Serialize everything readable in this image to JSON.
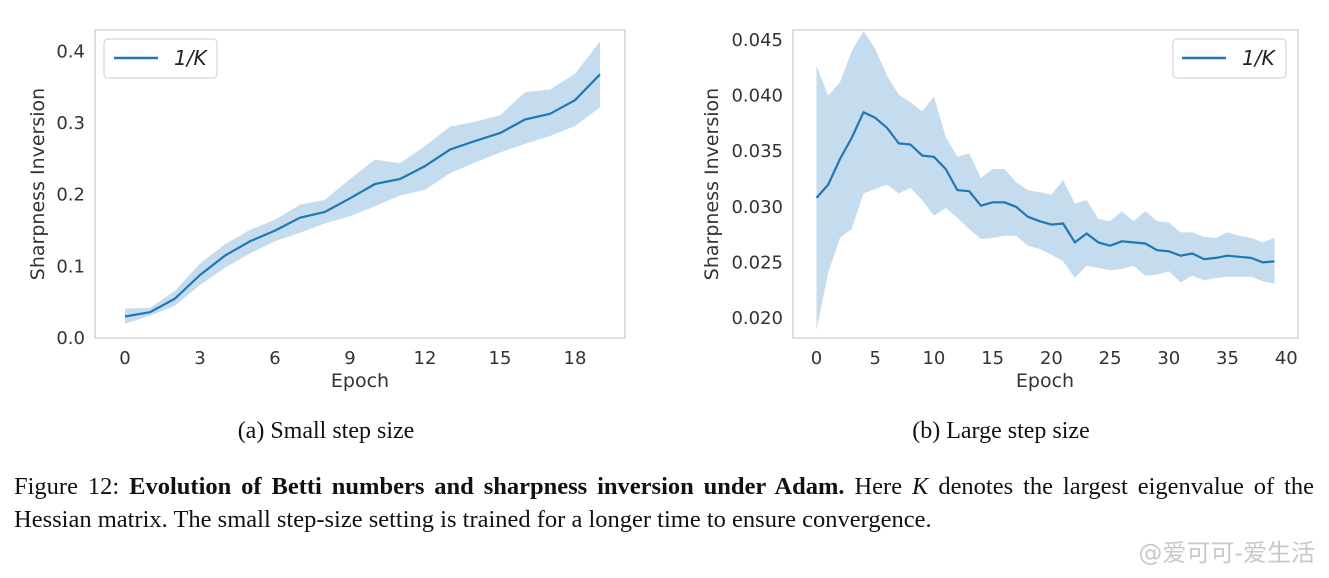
{
  "chart_data": [
    {
      "type": "line",
      "legend": "1/K",
      "legend_position": "top-left",
      "xlabel": "Epoch",
      "ylabel": "Sharpness Inversion",
      "xlim": [
        -1.2,
        20.0
      ],
      "ylim": [
        0.0,
        0.43
      ],
      "xticks": [
        0,
        3,
        6,
        9,
        12,
        15,
        18
      ],
      "yticks": [
        0.0,
        0.1,
        0.2,
        0.3,
        0.4
      ],
      "ytick_labels": [
        "0.0",
        "0.1",
        "0.2",
        "0.3",
        "0.4"
      ],
      "grid": false,
      "color": "#1f77b4",
      "subtitle": "(a) Small step size",
      "x": [
        0,
        1,
        2,
        3,
        4,
        5,
        6,
        7,
        8,
        9,
        10,
        11,
        12,
        13,
        14,
        15,
        16,
        17,
        18,
        19
      ],
      "mean": [
        0.03,
        0.036,
        0.055,
        0.088,
        0.115,
        0.135,
        0.15,
        0.168,
        0.176,
        0.195,
        0.215,
        0.222,
        0.24,
        0.263,
        0.275,
        0.286,
        0.305,
        0.313,
        0.332,
        0.368
      ],
      "upper": [
        0.041,
        0.042,
        0.066,
        0.104,
        0.131,
        0.151,
        0.165,
        0.186,
        0.193,
        0.222,
        0.249,
        0.244,
        0.268,
        0.295,
        0.302,
        0.311,
        0.343,
        0.347,
        0.369,
        0.414
      ],
      "lower": [
        0.02,
        0.031,
        0.045,
        0.074,
        0.098,
        0.118,
        0.135,
        0.147,
        0.16,
        0.17,
        0.184,
        0.199,
        0.207,
        0.23,
        0.245,
        0.259,
        0.271,
        0.282,
        0.296,
        0.322
      ]
    },
    {
      "type": "line",
      "legend": "1/K",
      "legend_position": "top-right",
      "xlabel": "Epoch",
      "ylabel": "Sharpness Inversion",
      "xlim": [
        -2.0,
        41.0
      ],
      "ylim": [
        0.0182,
        0.0459
      ],
      "xticks": [
        0,
        5,
        10,
        15,
        20,
        25,
        30,
        35,
        40
      ],
      "yticks": [
        0.02,
        0.025,
        0.03,
        0.035,
        0.04,
        0.045
      ],
      "ytick_labels": [
        "0.020",
        "0.025",
        "0.030",
        "0.035",
        "0.040",
        "0.045"
      ],
      "grid": false,
      "color": "#1f77b4",
      "subtitle": "(b) Large step size",
      "x": [
        0,
        1,
        2,
        3,
        4,
        5,
        6,
        7,
        8,
        9,
        10,
        11,
        12,
        13,
        14,
        15,
        16,
        17,
        18,
        19,
        20,
        21,
        22,
        23,
        24,
        25,
        26,
        27,
        28,
        29,
        30,
        31,
        32,
        33,
        34,
        35,
        36,
        37,
        38,
        39
      ],
      "mean": [
        0.0308,
        0.032,
        0.0343,
        0.0362,
        0.0385,
        0.038,
        0.0371,
        0.0357,
        0.0356,
        0.0346,
        0.0345,
        0.0334,
        0.0315,
        0.0314,
        0.0301,
        0.0304,
        0.0304,
        0.03,
        0.0291,
        0.0287,
        0.0284,
        0.0285,
        0.0268,
        0.0276,
        0.0268,
        0.0265,
        0.0269,
        0.0268,
        0.0267,
        0.0261,
        0.026,
        0.0256,
        0.0258,
        0.0253,
        0.0254,
        0.0256,
        0.0255,
        0.0254,
        0.025,
        0.0251
      ],
      "upper": [
        0.0427,
        0.04,
        0.0412,
        0.044,
        0.0458,
        0.0442,
        0.0418,
        0.0401,
        0.0394,
        0.0386,
        0.0399,
        0.0363,
        0.0345,
        0.0348,
        0.0326,
        0.0334,
        0.0334,
        0.0322,
        0.0315,
        0.0313,
        0.0311,
        0.0324,
        0.0303,
        0.0306,
        0.0289,
        0.0287,
        0.0296,
        0.0287,
        0.0296,
        0.0287,
        0.0286,
        0.0277,
        0.0277,
        0.0273,
        0.0272,
        0.0277,
        0.0274,
        0.0272,
        0.0268,
        0.0272
      ],
      "lower": [
        0.0189,
        0.0241,
        0.0272,
        0.028,
        0.0312,
        0.0316,
        0.032,
        0.0312,
        0.0317,
        0.0306,
        0.0292,
        0.0299,
        0.029,
        0.028,
        0.0271,
        0.0272,
        0.0274,
        0.0274,
        0.0265,
        0.0262,
        0.0257,
        0.0251,
        0.0236,
        0.0247,
        0.0245,
        0.0243,
        0.0244,
        0.0247,
        0.0238,
        0.0239,
        0.0242,
        0.0232,
        0.0238,
        0.0234,
        0.0236,
        0.0237,
        0.0237,
        0.0237,
        0.0233,
        0.0231
      ]
    }
  ],
  "caption": {
    "figure_label": "Figure 12:",
    "bold_title": "Evolution of Betti numbers and sharpness inversion under Adam.",
    "text_before_var": "Here",
    "variable": "K",
    "text_after_var": "denotes the largest eigenvalue of the Hessian matrix.  The small step-size setting is trained for a longer time to ensure convergence."
  },
  "watermark": "@爱可可-爱生活",
  "colors": {
    "line": "#1f77b4",
    "band": "#c4dcee",
    "frame": "#cccccc"
  }
}
